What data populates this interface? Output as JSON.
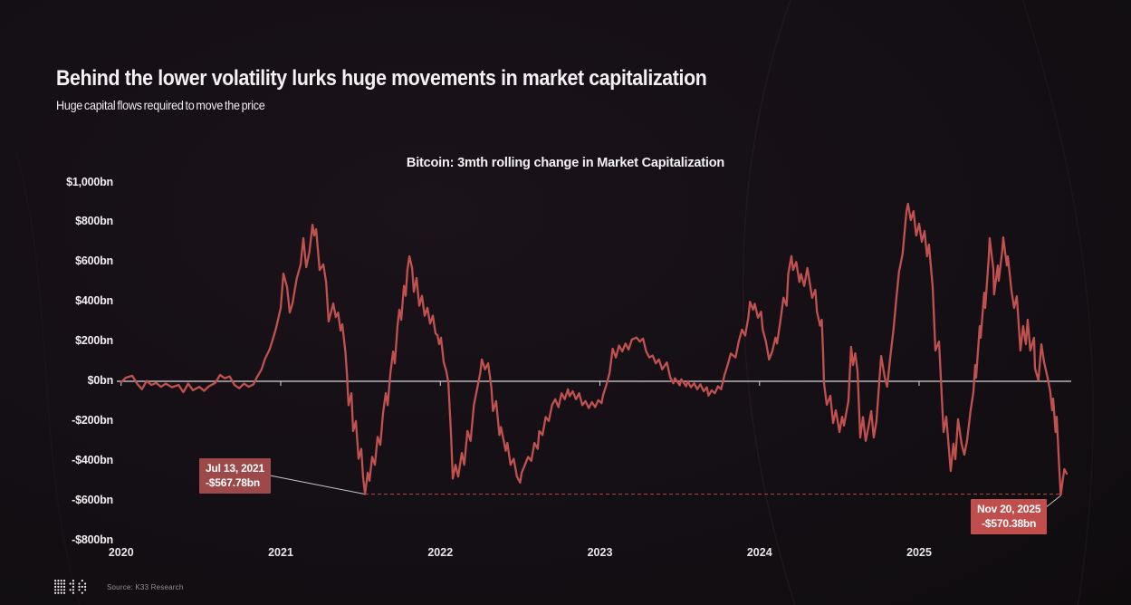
{
  "page": {
    "title": "Behind the lower volatility lurks huge movements in market capitalization",
    "subtitle": "Huge capital flows required to move the price",
    "source": "Source: K33 Research"
  },
  "icons": {
    "logo": "k33-dot-matrix-logo"
  },
  "colors": {
    "background": "#151016",
    "line": "#c0514f",
    "annotation_dark": "#9d4849",
    "annotation_bright": "#bf4e4c",
    "zero_line": "#d8d5d7",
    "dashed_line": "#b04a48",
    "connector": "#c9c6c8"
  },
  "chart_data": {
    "type": "line",
    "title": "Bitcoin: 3mth rolling change in Market Capitalization",
    "series_name": "3-month rolling change in market capitalization ($bn)",
    "grid": false,
    "zero_line": true,
    "legend": "none",
    "xlim": [
      2019.98,
      2026.0
    ],
    "ylim": [
      -900,
      1100
    ],
    "x_ticks": [
      2020,
      2021,
      2022,
      2023,
      2024,
      2025
    ],
    "y_ticks": [
      "$1,000bn",
      "$800bn",
      "$600bn",
      "$400bn",
      "$200bn",
      "$0bn",
      "-$200bn",
      "-$400bn",
      "-$600bn",
      "-$800bn"
    ],
    "y_tick_values": [
      1000,
      800,
      600,
      400,
      200,
      0,
      -200,
      -400,
      -600,
      -800
    ],
    "annotations": [
      {
        "label_date": "Jul 13, 2021",
        "label_value": "-$567.78bn",
        "x": 2021.528,
        "y": -567.78
      },
      {
        "label_date": "Nov 20, 2025",
        "label_value": "-$570.38bn",
        "x": 2025.888,
        "y": -570.38
      }
    ],
    "dashed_reference_line": {
      "from_x": 2021.528,
      "to_x": 2025.888,
      "y": -568
    },
    "points": [
      [
        2020.0,
        -5
      ],
      [
        2020.03,
        18
      ],
      [
        2020.07,
        28
      ],
      [
        2020.1,
        -12
      ],
      [
        2020.13,
        -40
      ],
      [
        2020.16,
        2
      ],
      [
        2020.19,
        -18
      ],
      [
        2020.22,
        -8
      ],
      [
        2020.25,
        -28
      ],
      [
        2020.28,
        -12
      ],
      [
        2020.32,
        -30
      ],
      [
        2020.36,
        -18
      ],
      [
        2020.39,
        -55
      ],
      [
        2020.42,
        -12
      ],
      [
        2020.45,
        -45
      ],
      [
        2020.49,
        -28
      ],
      [
        2020.52,
        -48
      ],
      [
        2020.55,
        -25
      ],
      [
        2020.59,
        -8
      ],
      [
        2020.62,
        32
      ],
      [
        2020.65,
        15
      ],
      [
        2020.68,
        25
      ],
      [
        2020.71,
        -18
      ],
      [
        2020.74,
        -35
      ],
      [
        2020.77,
        -12
      ],
      [
        2020.8,
        -28
      ],
      [
        2020.83,
        -15
      ],
      [
        2020.85,
        20
      ],
      [
        2020.88,
        60
      ],
      [
        2020.9,
        110
      ],
      [
        2020.93,
        160
      ],
      [
        2020.95,
        210
      ],
      [
        2020.97,
        264
      ],
      [
        2021.0,
        369
      ],
      [
        2021.017,
        542
      ],
      [
        2021.04,
        474
      ],
      [
        2021.057,
        346
      ],
      [
        2021.074,
        392
      ],
      [
        2021.1,
        515
      ],
      [
        2021.125,
        588
      ],
      [
        2021.142,
        720
      ],
      [
        2021.16,
        574
      ],
      [
        2021.18,
        651
      ],
      [
        2021.199,
        788
      ],
      [
        2021.21,
        733
      ],
      [
        2021.222,
        765
      ],
      [
        2021.244,
        560
      ],
      [
        2021.267,
        588
      ],
      [
        2021.285,
        497
      ],
      [
        2021.3,
        301
      ],
      [
        2021.315,
        346
      ],
      [
        2021.329,
        392
      ],
      [
        2021.345,
        323
      ],
      [
        2021.36,
        346
      ],
      [
        2021.375,
        255
      ],
      [
        2021.386,
        287
      ],
      [
        2021.405,
        150
      ],
      [
        2021.415,
        40
      ],
      [
        2021.425,
        -120
      ],
      [
        2021.443,
        -60
      ],
      [
        2021.454,
        -250
      ],
      [
        2021.471,
        -200
      ],
      [
        2021.488,
        -390
      ],
      [
        2021.505,
        -340
      ],
      [
        2021.516,
        -480
      ],
      [
        2021.528,
        -567.78
      ],
      [
        2021.545,
        -460
      ],
      [
        2021.556,
        -500
      ],
      [
        2021.573,
        -380
      ],
      [
        2021.59,
        -420
      ],
      [
        2021.607,
        -280
      ],
      [
        2021.624,
        -320
      ],
      [
        2021.641,
        -160
      ],
      [
        2021.658,
        -60
      ],
      [
        2021.67,
        -120
      ],
      [
        2021.687,
        40
      ],
      [
        2021.704,
        150
      ],
      [
        2021.715,
        90
      ],
      [
        2021.732,
        280
      ],
      [
        2021.743,
        360
      ],
      [
        2021.755,
        310
      ],
      [
        2021.772,
        480
      ],
      [
        2021.783,
        430
      ],
      [
        2021.794,
        560
      ],
      [
        2021.806,
        629
      ],
      [
        2021.823,
        570
      ],
      [
        2021.834,
        450
      ],
      [
        2021.851,
        520
      ],
      [
        2021.868,
        380
      ],
      [
        2021.885,
        430
      ],
      [
        2021.902,
        330
      ],
      [
        2021.919,
        370
      ],
      [
        2021.936,
        290
      ],
      [
        2021.953,
        330
      ],
      [
        2021.97,
        240
      ],
      [
        2021.982,
        232
      ],
      [
        2021.993,
        187
      ],
      [
        2022.004,
        219
      ],
      [
        2022.021,
        96
      ],
      [
        2022.038,
        50
      ],
      [
        2022.05,
        -5
      ],
      [
        2022.067,
        -269
      ],
      [
        2022.078,
        -490
      ],
      [
        2022.095,
        -420
      ],
      [
        2022.112,
        -480
      ],
      [
        2022.135,
        -360
      ],
      [
        2022.15,
        -420
      ],
      [
        2022.17,
        -250
      ],
      [
        2022.19,
        -300
      ],
      [
        2022.21,
        -120
      ],
      [
        2022.23,
        -40
      ],
      [
        2022.25,
        40
      ],
      [
        2022.26,
        110
      ],
      [
        2022.28,
        60
      ],
      [
        2022.3,
        90
      ],
      [
        2022.32,
        -30
      ],
      [
        2022.33,
        -150
      ],
      [
        2022.35,
        -100
      ],
      [
        2022.37,
        -270
      ],
      [
        2022.38,
        -230
      ],
      [
        2022.41,
        -350
      ],
      [
        2022.42,
        -310
      ],
      [
        2022.44,
        -420
      ],
      [
        2022.46,
        -390
      ],
      [
        2022.48,
        -480
      ],
      [
        2022.5,
        -510
      ],
      [
        2022.51,
        -460
      ],
      [
        2022.53,
        -420
      ],
      [
        2022.55,
        -380
      ],
      [
        2022.57,
        -400
      ],
      [
        2022.59,
        -310
      ],
      [
        2022.61,
        -340
      ],
      [
        2022.62,
        -250
      ],
      [
        2022.64,
        -270
      ],
      [
        2022.66,
        -180
      ],
      [
        2022.68,
        -200
      ],
      [
        2022.7,
        -120
      ],
      [
        2022.72,
        -90
      ],
      [
        2022.74,
        -130
      ],
      [
        2022.76,
        -60
      ],
      [
        2022.78,
        -90
      ],
      [
        2022.8,
        -40
      ],
      [
        2022.81,
        -75
      ],
      [
        2022.83,
        -50
      ],
      [
        2022.85,
        -90
      ],
      [
        2022.87,
        -60
      ],
      [
        2022.89,
        -120
      ],
      [
        2022.91,
        -100
      ],
      [
        2022.93,
        -135
      ],
      [
        2022.95,
        -105
      ],
      [
        2022.97,
        -130
      ],
      [
        2022.99,
        -95
      ],
      [
        2023.01,
        -110
      ],
      [
        2023.02,
        -70
      ],
      [
        2023.04,
        -20
      ],
      [
        2023.06,
        40
      ],
      [
        2023.08,
        164
      ],
      [
        2023.1,
        120
      ],
      [
        2023.12,
        180
      ],
      [
        2023.14,
        150
      ],
      [
        2023.16,
        190
      ],
      [
        2023.18,
        160
      ],
      [
        2023.2,
        210
      ],
      [
        2023.23,
        220
      ],
      [
        2023.25,
        200
      ],
      [
        2023.27,
        215
      ],
      [
        2023.29,
        150
      ],
      [
        2023.31,
        120
      ],
      [
        2023.33,
        130
      ],
      [
        2023.35,
        90
      ],
      [
        2023.37,
        110
      ],
      [
        2023.39,
        60
      ],
      [
        2023.42,
        95
      ],
      [
        2023.44,
        20
      ],
      [
        2023.46,
        -10
      ],
      [
        2023.47,
        15
      ],
      [
        2023.5,
        -20
      ],
      [
        2023.51,
        10
      ],
      [
        2023.54,
        -25
      ],
      [
        2023.55,
        0
      ],
      [
        2023.57,
        -30
      ],
      [
        2023.59,
        -10
      ],
      [
        2023.61,
        -40
      ],
      [
        2023.63,
        -15
      ],
      [
        2023.65,
        -50
      ],
      [
        2023.67,
        -30
      ],
      [
        2023.68,
        -72
      ],
      [
        2023.7,
        -45
      ],
      [
        2023.72,
        -60
      ],
      [
        2023.74,
        -25
      ],
      [
        2023.76,
        -40
      ],
      [
        2023.78,
        30
      ],
      [
        2023.8,
        80
      ],
      [
        2023.82,
        140
      ],
      [
        2023.85,
        120
      ],
      [
        2023.87,
        200
      ],
      [
        2023.89,
        260
      ],
      [
        2023.91,
        230
      ],
      [
        2023.93,
        320
      ],
      [
        2023.94,
        400
      ],
      [
        2023.96,
        360
      ],
      [
        2023.97,
        390
      ],
      [
        2023.99,
        320
      ],
      [
        2024.01,
        350
      ],
      [
        2024.02,
        260
      ],
      [
        2024.04,
        200
      ],
      [
        2024.06,
        110
      ],
      [
        2024.08,
        150
      ],
      [
        2024.1,
        220
      ],
      [
        2024.11,
        190
      ],
      [
        2024.13,
        300
      ],
      [
        2024.15,
        420
      ],
      [
        2024.17,
        380
      ],
      [
        2024.18,
        540
      ],
      [
        2024.2,
        630
      ],
      [
        2024.21,
        560
      ],
      [
        2024.23,
        600
      ],
      [
        2024.25,
        500
      ],
      [
        2024.26,
        540
      ],
      [
        2024.28,
        480
      ],
      [
        2024.3,
        570
      ],
      [
        2024.31,
        520
      ],
      [
        2024.33,
        420
      ],
      [
        2024.35,
        460
      ],
      [
        2024.36,
        350
      ],
      [
        2024.38,
        280
      ],
      [
        2024.39,
        310
      ],
      [
        2024.398,
        150
      ],
      [
        2024.404,
        -9
      ],
      [
        2024.421,
        -118
      ],
      [
        2024.444,
        -73
      ],
      [
        2024.461,
        -210
      ],
      [
        2024.478,
        -146
      ],
      [
        2024.501,
        -255
      ],
      [
        2024.518,
        -178
      ],
      [
        2024.529,
        -223
      ],
      [
        2024.557,
        -100
      ],
      [
        2024.574,
        173
      ],
      [
        2024.586,
        82
      ],
      [
        2024.6,
        141
      ],
      [
        2024.614,
        50
      ],
      [
        2024.631,
        -283
      ],
      [
        2024.648,
        -180
      ],
      [
        2024.665,
        -300
      ],
      [
        2024.682,
        -232
      ],
      [
        2024.7,
        -150
      ],
      [
        2024.716,
        -283
      ],
      [
        2024.733,
        -200
      ],
      [
        2024.745,
        -60
      ],
      [
        2024.762,
        127
      ],
      [
        2024.785,
        18
      ],
      [
        2024.8,
        -27
      ],
      [
        2024.82,
        127
      ],
      [
        2024.84,
        264
      ],
      [
        2024.857,
        414
      ],
      [
        2024.874,
        551
      ],
      [
        2024.897,
        642
      ],
      [
        2024.914,
        793
      ],
      [
        2024.921,
        856
      ],
      [
        2024.93,
        893
      ],
      [
        2024.948,
        811
      ],
      [
        2024.965,
        856
      ],
      [
        2024.982,
        733
      ],
      [
        2025.0,
        793
      ],
      [
        2025.017,
        702
      ],
      [
        2025.034,
        756
      ],
      [
        2025.05,
        629
      ],
      [
        2025.062,
        688
      ],
      [
        2025.085,
        474
      ],
      [
        2025.102,
        155
      ],
      [
        2025.125,
        200
      ],
      [
        2025.153,
        -255
      ],
      [
        2025.17,
        -178
      ],
      [
        2025.198,
        -451
      ],
      [
        2025.215,
        -314
      ],
      [
        2025.227,
        -392
      ],
      [
        2025.244,
        -191
      ],
      [
        2025.266,
        -314
      ],
      [
        2025.283,
        -369
      ],
      [
        2025.3,
        -300
      ],
      [
        2025.323,
        -146
      ],
      [
        2025.34,
        -55
      ],
      [
        2025.352,
        82
      ],
      [
        2025.357,
        18
      ],
      [
        2025.38,
        278
      ],
      [
        2025.386,
        219
      ],
      [
        2025.408,
        446
      ],
      [
        2025.414,
        369
      ],
      [
        2025.437,
        629
      ],
      [
        2025.442,
        720
      ],
      [
        2025.465,
        565
      ],
      [
        2025.47,
        437
      ],
      [
        2025.493,
        583
      ],
      [
        2025.499,
        506
      ],
      [
        2025.521,
        656
      ],
      [
        2025.527,
        724
      ],
      [
        2025.55,
        583
      ],
      [
        2025.556,
        629
      ],
      [
        2025.578,
        460
      ],
      [
        2025.595,
        369
      ],
      [
        2025.612,
        428
      ],
      [
        2025.635,
        155
      ],
      [
        2025.652,
        278
      ],
      [
        2025.669,
        187
      ],
      [
        2025.68,
        310
      ],
      [
        2025.697,
        155
      ],
      [
        2025.72,
        219
      ],
      [
        2025.726,
        64
      ],
      [
        2025.748,
        5
      ],
      [
        2025.766,
        187
      ],
      [
        2025.783,
        96
      ],
      [
        2025.805,
        18
      ],
      [
        2025.822,
        -55
      ],
      [
        2025.834,
        -146
      ],
      [
        2025.84,
        -87
      ],
      [
        2025.855,
        -255
      ],
      [
        2025.862,
        -178
      ],
      [
        2025.87,
        -300
      ],
      [
        2025.876,
        -405
      ],
      [
        2025.882,
        -497
      ],
      [
        2025.886,
        -556
      ],
      [
        2025.888,
        -570.38
      ],
      [
        2025.9,
        -497
      ],
      [
        2025.91,
        -442
      ],
      [
        2025.925,
        -465
      ]
    ]
  }
}
